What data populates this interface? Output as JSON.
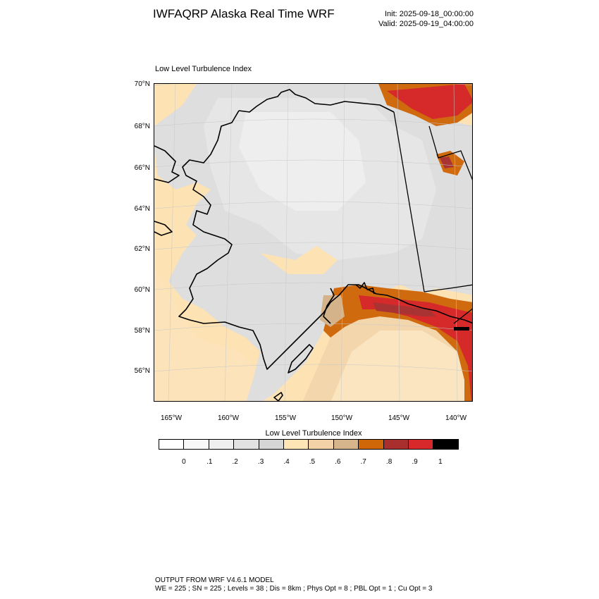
{
  "header": {
    "title": "IWFAQRP Alaska Real Time WRF",
    "init": "Init: 2025-09-18_00:00:00",
    "valid": "Valid: 2025-09-19_04:00:00"
  },
  "map": {
    "field_title": "Low Level Turbulence Index",
    "lat_labels": [
      "70°N",
      "68°N",
      "66°N",
      "64°N",
      "62°N",
      "60°N",
      "58°N",
      "56°N"
    ],
    "lon_labels": [
      "165°W",
      "160°W",
      "155°W",
      "150°W",
      "145°W",
      "140°W"
    ],
    "colors": {
      "land_gray": "#dcdcdc",
      "light_gray": "#ececec",
      "pale_orange": "#fde2b3",
      "tan": "#d5b38a",
      "orange": "#d06a0f",
      "dark_red": "#a93232",
      "red": "#d62a2a"
    }
  },
  "legend": {
    "title": "Low Level Turbulence Index",
    "tick_labels": [
      "0",
      ".1",
      ".2",
      ".3",
      ".4",
      ".5",
      ".6",
      ".7",
      ".8",
      ".9",
      "1"
    ],
    "colors": [
      "#ffffff",
      "#f7f7f7",
      "#efefef",
      "#e2e2e2",
      "#d5d5d5",
      "#fde5b5",
      "#f2d2a6",
      "#d6b48c",
      "#cf6708",
      "#a92f2f",
      "#d7292b",
      "#000000"
    ]
  },
  "footer": {
    "line1": "OUTPUT FROM WRF V4.6.1 MODEL",
    "line2": "WE = 225 ; SN = 225 ; Levels = 38 ; Dis = 8km ; Phys Opt = 8 ; PBL Opt = 1 ; Cu Opt = 3"
  }
}
